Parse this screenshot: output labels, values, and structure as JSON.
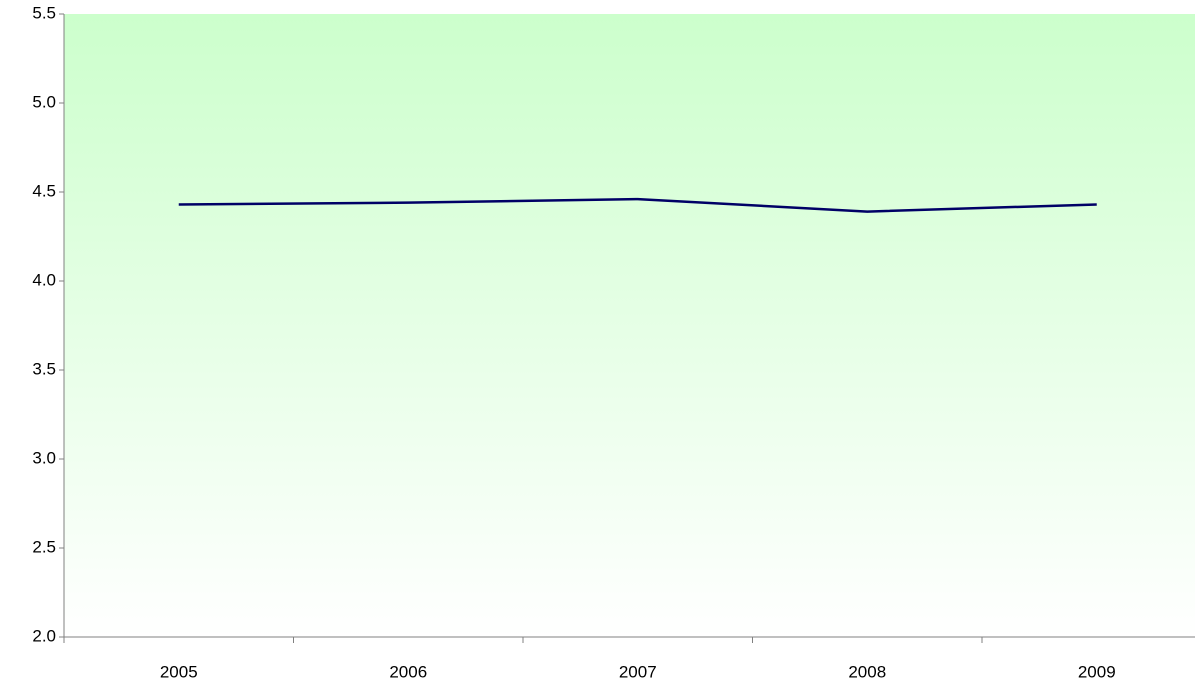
{
  "chart_data": {
    "type": "line",
    "categories": [
      "2005",
      "2006",
      "2007",
      "2008",
      "2009"
    ],
    "series": [
      {
        "name": null,
        "color": "#000066",
        "values": [
          4.43,
          4.44,
          4.46,
          4.39,
          4.43
        ]
      }
    ],
    "ylim": [
      2.0,
      5.5
    ],
    "yticks": [
      {
        "value": 2,
        "label": "2.0"
      },
      2.5,
      {
        "value": 3,
        "label": "3.0"
      },
      3.5,
      {
        "value": 4,
        "label": "4.0"
      },
      4.5,
      {
        "value": 5,
        "label": "5.0"
      },
      5.5
    ],
    "grid": false,
    "background_gradient": [
      "#ccffcc",
      "#ffffff"
    ]
  }
}
